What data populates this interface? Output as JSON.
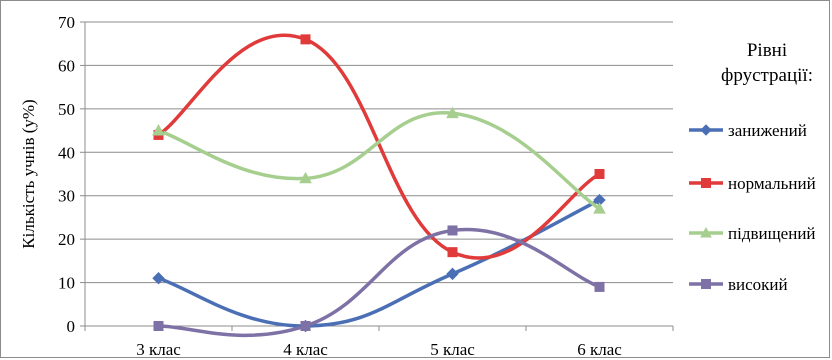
{
  "chart_data": {
    "type": "line",
    "smooth": true,
    "categories": [
      "3 клас",
      "4 клас",
      "5 клас",
      "6 клас"
    ],
    "ylabel": "Кількість учнів (у%)",
    "xlabel": "",
    "ylim": [
      0,
      70
    ],
    "yticks": [
      0,
      10,
      20,
      30,
      40,
      50,
      60,
      70
    ],
    "grid": true,
    "legend_position": "right",
    "legend_title": [
      "Рівні",
      "фрустрації:"
    ],
    "series": [
      {
        "name": "занижений",
        "values": [
          11,
          0,
          12,
          29
        ],
        "color": "#4a6fb5",
        "marker": "diamond"
      },
      {
        "name": "нормальний",
        "values": [
          44,
          66,
          17,
          35
        ],
        "color": "#e03a3a",
        "marker": "square"
      },
      {
        "name": "підвищений",
        "values": [
          45,
          34,
          49,
          27
        ],
        "color": "#a6cf8f",
        "marker": "triangle"
      },
      {
        "name": "високий",
        "values": [
          0,
          0,
          22,
          9
        ],
        "color": "#7d71a6",
        "marker": "square"
      }
    ]
  }
}
